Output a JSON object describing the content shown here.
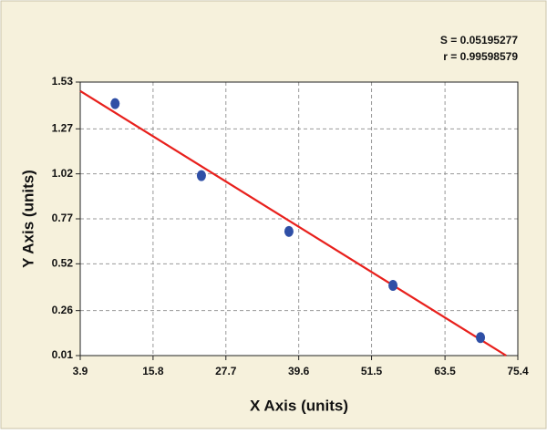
{
  "chart_data": {
    "type": "scatter",
    "xlabel": "X Axis (units)",
    "ylabel": "Y Axis (units)",
    "annotations": [
      "S = 0.05195277",
      "r = 0.99598579"
    ],
    "xlim": [
      3.9,
      75.4
    ],
    "xticks": [
      3.9,
      15.8,
      27.7,
      39.6,
      51.5,
      63.5,
      75.4
    ],
    "ylim": [
      0.01,
      1.53
    ],
    "yticks": [
      0.01,
      0.26,
      0.52,
      0.77,
      1.02,
      1.27,
      1.53
    ],
    "grid": true,
    "series": [
      {
        "type": "scatter",
        "color": "#2f4fa6",
        "x": [
          9.6,
          23.7,
          38.0,
          55.0,
          69.3
        ],
        "values": [
          1.41,
          1.01,
          0.7,
          0.4,
          0.11
        ]
      },
      {
        "type": "line",
        "color": "#e8201c",
        "x": [
          3.9,
          73.5
        ],
        "values": [
          1.48,
          0.01
        ]
      }
    ]
  }
}
